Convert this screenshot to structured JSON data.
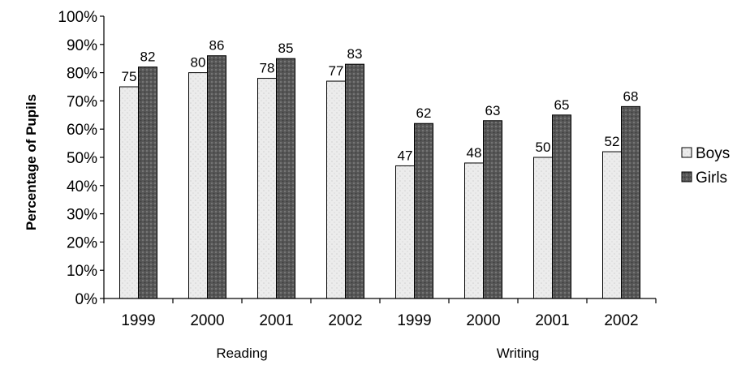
{
  "chart_data": {
    "type": "bar",
    "ylabel": "Percentage of Pupils",
    "ylim": [
      0,
      100
    ],
    "yticks": [
      "0%",
      "10%",
      "20%",
      "30%",
      "40%",
      "50%",
      "60%",
      "70%",
      "80%",
      "90%",
      "100%"
    ],
    "groups": [
      {
        "label": "Reading",
        "categories": [
          "1999",
          "2000",
          "2001",
          "2002"
        ]
      },
      {
        "label": "Writing",
        "categories": [
          "1999",
          "2000",
          "2001",
          "2002"
        ]
      }
    ],
    "categories": [
      "1999",
      "2000",
      "2001",
      "2002",
      "1999",
      "2000",
      "2001",
      "2002"
    ],
    "series": [
      {
        "name": "Boys",
        "values": [
          75,
          80,
          78,
          77,
          47,
          48,
          50,
          52
        ],
        "color": "#e6e6e6"
      },
      {
        "name": "Girls",
        "values": [
          82,
          86,
          85,
          83,
          62,
          63,
          65,
          68
        ],
        "color": "#5c5c5c"
      }
    ],
    "data_labels": true,
    "grid": false,
    "legend": "right"
  }
}
